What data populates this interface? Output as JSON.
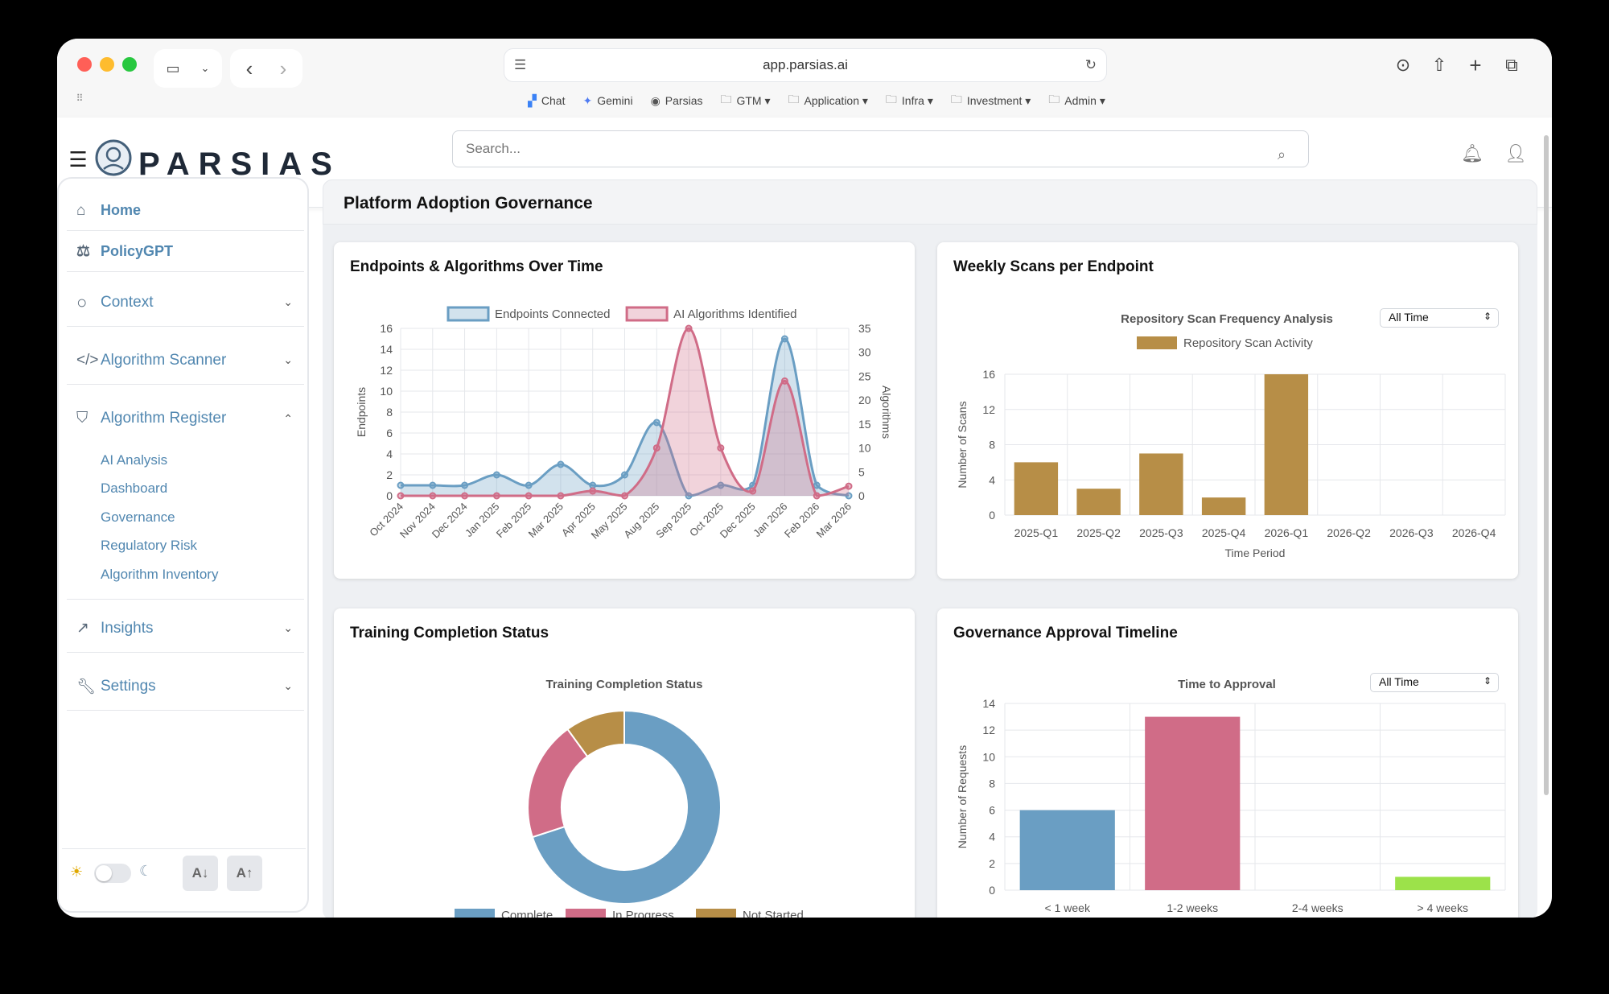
{
  "browser": {
    "url": "app.parsias.ai",
    "bookmarks": [
      {
        "label": "Chat",
        "icon": "chat-icon"
      },
      {
        "label": "Gemini",
        "icon": "gemini-icon"
      },
      {
        "label": "Parsias",
        "icon": "parsias-icon"
      },
      {
        "label": "GTM",
        "icon": "folder-icon"
      },
      {
        "label": "Application",
        "icon": "folder-icon"
      },
      {
        "label": "Infra",
        "icon": "folder-icon"
      },
      {
        "label": "Investment",
        "icon": "folder-icon"
      },
      {
        "label": "Admin",
        "icon": "folder-icon"
      }
    ]
  },
  "app": {
    "logo": "PARSIAS",
    "search_placeholder": "Search..."
  },
  "sidebar": {
    "items": [
      {
        "label": "Home",
        "icon": "home-icon"
      },
      {
        "label": "PolicyGPT",
        "icon": "scale-icon"
      },
      {
        "label": "Context",
        "icon": "search-icon"
      },
      {
        "label": "Algorithm Scanner",
        "icon": "code-icon"
      },
      {
        "label": "Algorithm Register",
        "icon": "shield-icon"
      },
      {
        "label": "Insights",
        "icon": "trend-icon"
      },
      {
        "label": "Settings",
        "icon": "wrench-icon"
      }
    ],
    "register_sub": [
      "AI Analysis",
      "Dashboard",
      "Governance",
      "Regulatory Risk",
      "Algorithm Inventory"
    ],
    "font_down": "A↓",
    "font_up": "A↑"
  },
  "page": {
    "title": "Platform Adoption Governance"
  },
  "colors": {
    "blue": "#6a9ec3",
    "pink": "#d06c87",
    "gold": "#b78e47",
    "green": "#9ce24a",
    "nav": "#5187b0"
  },
  "cards": {
    "endpoints_title": "Endpoints & Algorithms Over Time",
    "scans_title": "Weekly Scans per Endpoint",
    "training_title": "Training Completion Status",
    "approval_title": "Governance Approval Timeline",
    "scans_filter": "All Time",
    "approval_filter": "All Time"
  },
  "chart_data": [
    {
      "type": "area",
      "title": "",
      "categories": [
        "Oct 2024",
        "Nov 2024",
        "Dec 2024",
        "Jan 2025",
        "Feb 2025",
        "Mar 2025",
        "Apr 2025",
        "May 2025",
        "Aug 2025",
        "Sep 2025",
        "Oct 2025",
        "Dec 2025",
        "Jan 2026",
        "Feb 2026",
        "Mar 2026"
      ],
      "series": [
        {
          "name": "Endpoints Connected",
          "axis": "left",
          "values": [
            1,
            1,
            1,
            2,
            1,
            3,
            1,
            2,
            7,
            0,
            1,
            1,
            15,
            1,
            0
          ]
        },
        {
          "name": "AI Algorithms Identified",
          "axis": "right",
          "values": [
            0,
            0,
            0,
            0,
            0,
            0,
            1,
            0,
            10,
            35,
            10,
            1,
            24,
            0,
            2
          ]
        }
      ],
      "ylabel": "Endpoints",
      "ylim": [
        0,
        16
      ],
      "y_ticks": [
        0,
        2,
        4,
        6,
        8,
        10,
        12,
        14,
        16
      ],
      "y2label": "Algorithms",
      "y2lim": [
        0,
        35
      ],
      "y2_ticks": [
        0,
        5,
        10,
        15,
        20,
        25,
        30,
        35
      ],
      "legend": "top"
    },
    {
      "type": "bar",
      "title": "Repository Scan Frequency Analysis",
      "categories": [
        "2025-Q1",
        "2025-Q2",
        "2025-Q3",
        "2025-Q4",
        "2026-Q1",
        "2026-Q2",
        "2026-Q3",
        "2026-Q4"
      ],
      "series": [
        {
          "name": "Repository Scan Activity",
          "values": [
            6,
            3,
            7,
            2,
            16,
            0,
            0,
            0
          ]
        }
      ],
      "xlabel": "Time Period",
      "ylabel": "Number of Scans",
      "ylim": [
        0,
        16
      ],
      "y_ticks": [
        0,
        4,
        8,
        12,
        16
      ],
      "legend": "top"
    },
    {
      "type": "pie",
      "title": "Training Completion Status",
      "categories": [
        "Complete",
        "In Progress",
        "Not Started"
      ],
      "values": [
        70,
        20,
        10
      ],
      "legend": "bottom"
    },
    {
      "type": "bar",
      "title": "Time to Approval",
      "categories": [
        "< 1 week",
        "1-2 weeks",
        "2-4 weeks",
        "> 4 weeks"
      ],
      "values": [
        6,
        13,
        0,
        1
      ],
      "ylabel": "Number of Requests",
      "ylim": [
        0,
        14
      ],
      "y_ticks": [
        0,
        2,
        4,
        6,
        8,
        10,
        12,
        14
      ]
    }
  ]
}
